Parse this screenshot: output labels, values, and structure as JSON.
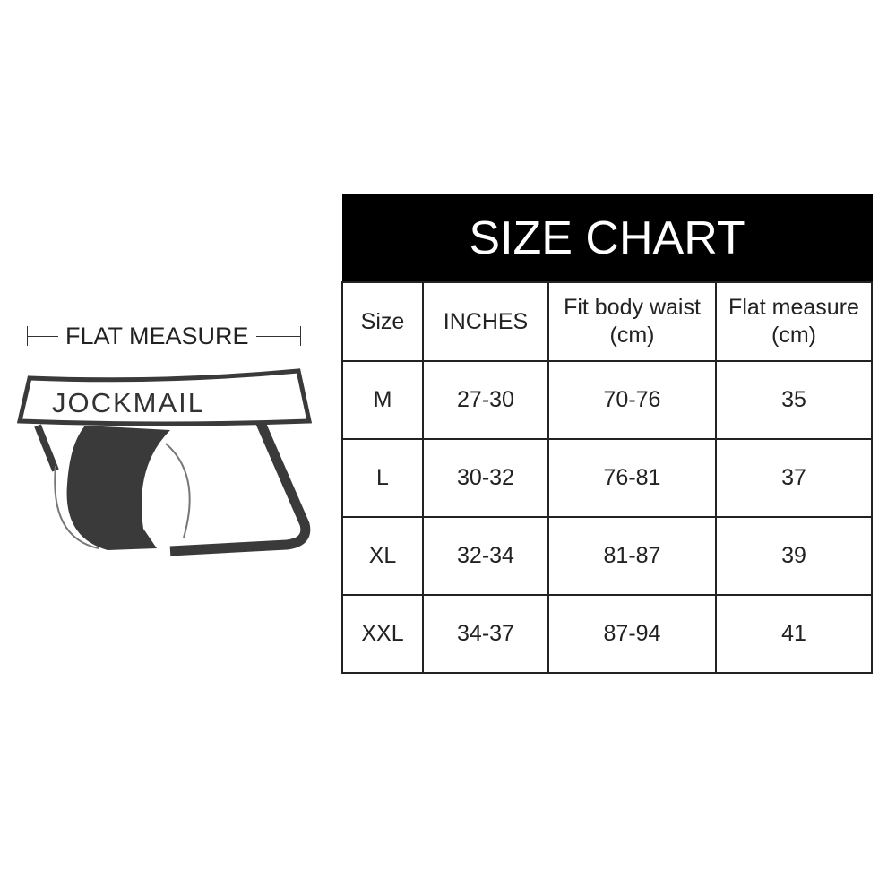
{
  "flat_measure_label": "FLAT MEASURE",
  "brand_logo_text": "JOCKMAIL",
  "size_chart": {
    "title": "SIZE CHART",
    "columns": [
      "Size",
      "INCHES",
      "Fit body waist\n(cm)",
      "Flat measure\n(cm)"
    ],
    "columns_lines": [
      [
        "Size"
      ],
      [
        "INCHES"
      ],
      [
        "Fit body waist",
        "(cm)"
      ],
      [
        "Flat measure",
        "(cm)"
      ]
    ],
    "rows": [
      [
        "M",
        "27-30",
        "70-76",
        "35"
      ],
      [
        "L",
        "30-32",
        "76-81",
        "37"
      ],
      [
        "XL",
        "32-34",
        "81-87",
        "39"
      ],
      [
        "XXL",
        "34-37",
        "87-94",
        "41"
      ]
    ]
  }
}
